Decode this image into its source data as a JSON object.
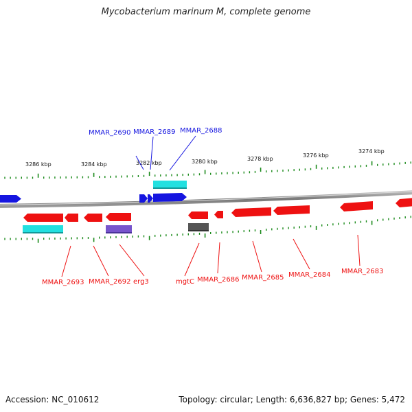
{
  "title": "Mycobacterium marinum M, complete genome",
  "footer": {
    "accession": "Accession: NC_010612",
    "summary": "Topology: circular; Length: 6,636,827 bp; Genes: 5,472"
  },
  "colors": {
    "forward_gene": "#1515e0",
    "reverse_gene": "#ee1111",
    "cds_cyan": "#22e0e0",
    "cds_purple": "#7755cc",
    "cds_gray": "#555555",
    "backbone": "#888888",
    "tick": "#1a8a1a"
  },
  "kbp_labels": [
    "3286 kbp",
    "3284 kbp",
    "3282 kbp",
    "3280 kbp",
    "3278 kbp",
    "3276 kbp",
    "3274 kbp"
  ],
  "top_genes": [
    {
      "name": "MMAR_2690"
    },
    {
      "name": "MMAR_2689"
    },
    {
      "name": "MMAR_2688"
    }
  ],
  "bottom_genes": [
    {
      "name": "MMAR_2693"
    },
    {
      "name": "MMAR_2692"
    },
    {
      "name": "erg3"
    },
    {
      "name": "mgtC"
    },
    {
      "name": "MMAR_2686"
    },
    {
      "name": "MMAR_2685"
    },
    {
      "name": "MMAR_2684"
    },
    {
      "name": "MMAR_2683"
    }
  ]
}
